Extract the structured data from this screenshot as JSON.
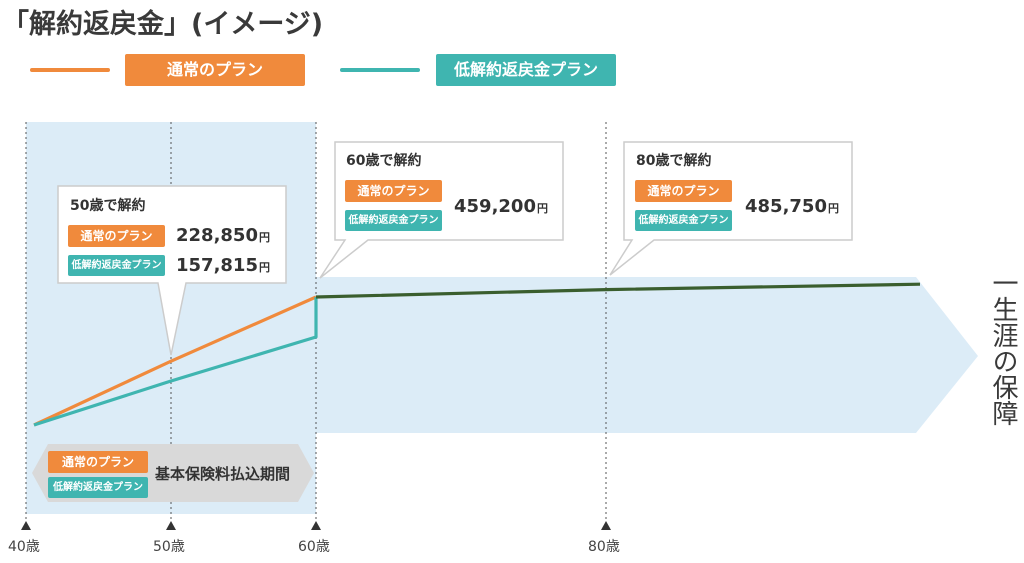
{
  "title": "「解約返戻金」(イメージ)",
  "legend": {
    "normal": "通常のプラン",
    "low": "低解約返戻金プラン"
  },
  "colors": {
    "normal": "#f08a3c",
    "low": "#3fb5b0",
    "after": "#3a5e2e",
    "band": "#dcecf7"
  },
  "callouts": [
    {
      "heading": "50歳で解約",
      "normal_label": "通常のプラン",
      "low_label": "低解約返戻金プラン",
      "normal_value": "228,850",
      "low_value": "157,815",
      "unit": "円"
    },
    {
      "heading": "60歳で解約",
      "normal_label": "通常のプラン",
      "low_label": "低解約返戻金プラン",
      "value": "459,200",
      "unit": "円"
    },
    {
      "heading": "80歳で解約",
      "normal_label": "通常のプラン",
      "low_label": "低解約返戻金プラン",
      "value": "485,750",
      "unit": "円"
    }
  ],
  "period": {
    "normal_label": "通常のプラン",
    "low_label": "低解約返戻金プラン",
    "text": "基本保険料払込期間"
  },
  "lifetime_label": "一生涯の保障",
  "axis": {
    "ticks": [
      "40歳",
      "50歳",
      "60歳",
      "80歳"
    ]
  },
  "chart_data": {
    "type": "line",
    "title": "「解約返戻金」(イメージ)",
    "xlabel": "",
    "ylabel": "",
    "x_ticks": [
      40,
      50,
      60,
      80
    ],
    "series": [
      {
        "name": "通常のプラン",
        "points": [
          [
            40,
            0
          ],
          [
            50,
            228850
          ],
          [
            60,
            459200
          ]
        ]
      },
      {
        "name": "低解約返戻金プラン",
        "points": [
          [
            40,
            0
          ],
          [
            50,
            157815
          ],
          [
            60,
            315630
          ],
          [
            60,
            459200
          ]
        ]
      },
      {
        "points": [
          [
            60,
            459200
          ],
          [
            80,
            485750
          ],
          [
            100,
            505000
          ]
        ]
      }
    ]
  }
}
